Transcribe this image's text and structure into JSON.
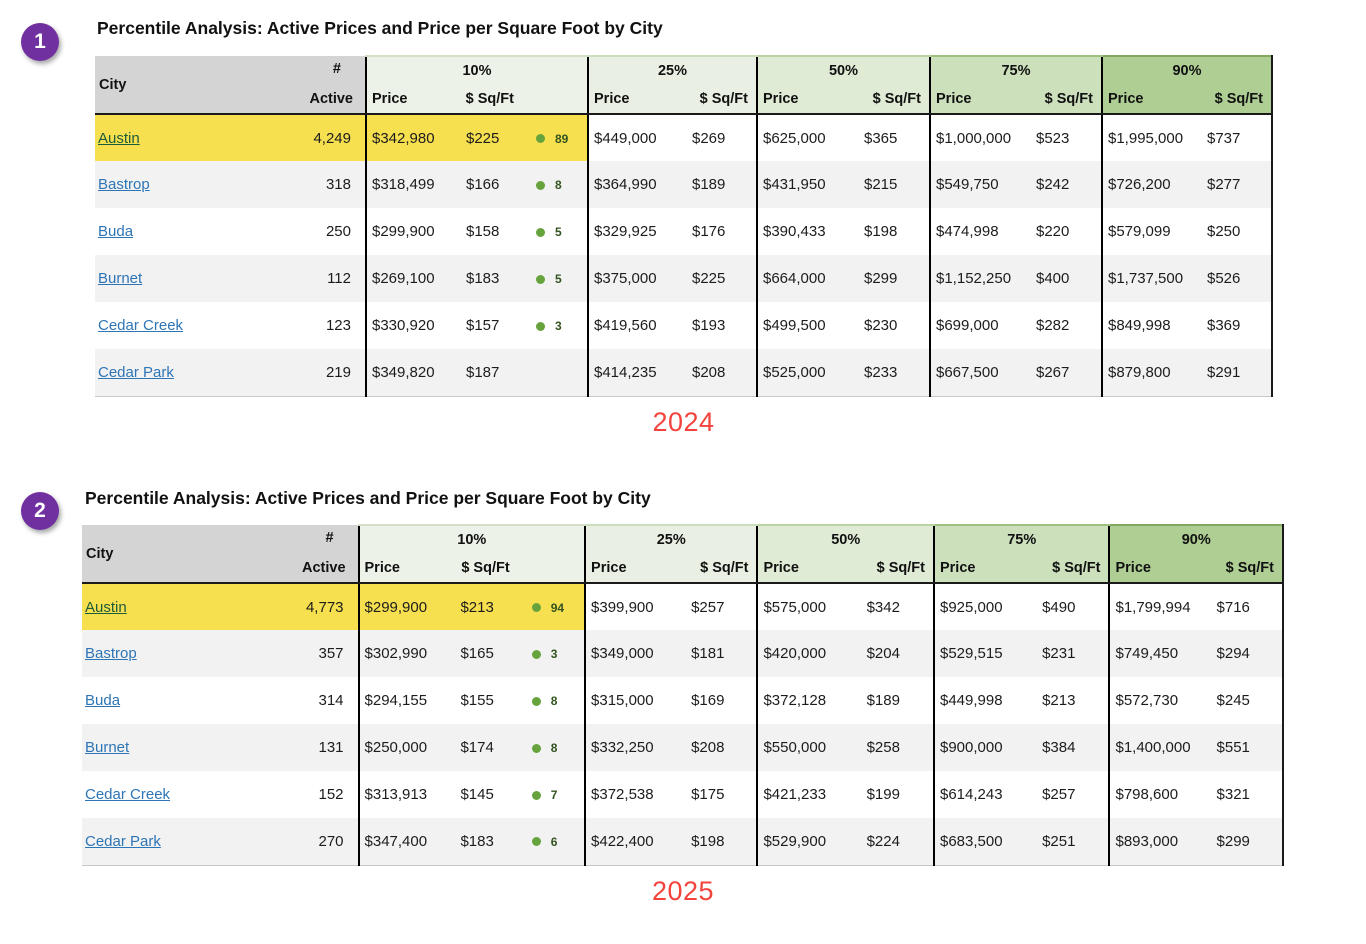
{
  "columns": {
    "city": "City",
    "active_top": "#",
    "active_bottom": "Active",
    "price": "Price",
    "sqft": "$ Sq/Ft",
    "percentiles": [
      "10%",
      "25%",
      "50%",
      "75%",
      "90%"
    ]
  },
  "sections": [
    {
      "badge": "1",
      "title": "Percentile Analysis: Active Prices and Price per Square Foot by City",
      "caption": "2024",
      "rows": [
        {
          "city": "Austin",
          "active": "4,249",
          "dot": "89",
          "highlight": true,
          "pct": [
            [
              "$342,980",
              "$225"
            ],
            [
              "$449,000",
              "$269"
            ],
            [
              "$625,000",
              "$365"
            ],
            [
              "$1,000,000",
              "$523"
            ],
            [
              "$1,995,000",
              "$737"
            ]
          ]
        },
        {
          "city": "Bastrop",
          "active": "318",
          "dot": "8",
          "highlight": false,
          "pct": [
            [
              "$318,499",
              "$166"
            ],
            [
              "$364,990",
              "$189"
            ],
            [
              "$431,950",
              "$215"
            ],
            [
              "$549,750",
              "$242"
            ],
            [
              "$726,200",
              "$277"
            ]
          ]
        },
        {
          "city": "Buda",
          "active": "250",
          "dot": "5",
          "highlight": false,
          "pct": [
            [
              "$299,900",
              "$158"
            ],
            [
              "$329,925",
              "$176"
            ],
            [
              "$390,433",
              "$198"
            ],
            [
              "$474,998",
              "$220"
            ],
            [
              "$579,099",
              "$250"
            ]
          ]
        },
        {
          "city": "Burnet",
          "active": "112",
          "dot": "5",
          "highlight": false,
          "pct": [
            [
              "$269,100",
              "$183"
            ],
            [
              "$375,000",
              "$225"
            ],
            [
              "$664,000",
              "$299"
            ],
            [
              "$1,152,250",
              "$400"
            ],
            [
              "$1,737,500",
              "$526"
            ]
          ]
        },
        {
          "city": "Cedar Creek",
          "active": "123",
          "dot": "3",
          "highlight": false,
          "pct": [
            [
              "$330,920",
              "$157"
            ],
            [
              "$419,560",
              "$193"
            ],
            [
              "$499,500",
              "$230"
            ],
            [
              "$699,000",
              "$282"
            ],
            [
              "$849,998",
              "$369"
            ]
          ]
        },
        {
          "city": "Cedar Park",
          "active": "219",
          "dot": null,
          "highlight": false,
          "pct": [
            [
              "$349,820",
              "$187"
            ],
            [
              "$414,235",
              "$208"
            ],
            [
              "$525,000",
              "$233"
            ],
            [
              "$667,500",
              "$267"
            ],
            [
              "$879,800",
              "$291"
            ]
          ]
        }
      ]
    },
    {
      "badge": "2",
      "title": "Percentile Analysis: Active Prices and Price per Square Foot by City",
      "caption": "2025",
      "rows": [
        {
          "city": "Austin",
          "active": "4,773",
          "dot": "94",
          "highlight": true,
          "pct": [
            [
              "$299,900",
              "$213"
            ],
            [
              "$399,900",
              "$257"
            ],
            [
              "$575,000",
              "$342"
            ],
            [
              "$925,000",
              "$490"
            ],
            [
              "$1,799,994",
              "$716"
            ]
          ]
        },
        {
          "city": "Bastrop",
          "active": "357",
          "dot": "3",
          "highlight": false,
          "pct": [
            [
              "$302,990",
              "$165"
            ],
            [
              "$349,000",
              "$181"
            ],
            [
              "$420,000",
              "$204"
            ],
            [
              "$529,515",
              "$231"
            ],
            [
              "$749,450",
              "$294"
            ]
          ]
        },
        {
          "city": "Buda",
          "active": "314",
          "dot": "8",
          "highlight": false,
          "pct": [
            [
              "$294,155",
              "$155"
            ],
            [
              "$315,000",
              "$169"
            ],
            [
              "$372,128",
              "$189"
            ],
            [
              "$449,998",
              "$213"
            ],
            [
              "$572,730",
              "$245"
            ]
          ]
        },
        {
          "city": "Burnet",
          "active": "131",
          "dot": "8",
          "highlight": false,
          "pct": [
            [
              "$250,000",
              "$174"
            ],
            [
              "$332,250",
              "$208"
            ],
            [
              "$550,000",
              "$258"
            ],
            [
              "$900,000",
              "$384"
            ],
            [
              "$1,400,000",
              "$551"
            ]
          ]
        },
        {
          "city": "Cedar Creek",
          "active": "152",
          "dot": "7",
          "highlight": false,
          "pct": [
            [
              "$313,913",
              "$145"
            ],
            [
              "$372,538",
              "$175"
            ],
            [
              "$421,233",
              "$199"
            ],
            [
              "$614,243",
              "$257"
            ],
            [
              "$798,600",
              "$321"
            ]
          ]
        },
        {
          "city": "Cedar Park",
          "active": "270",
          "dot": "6",
          "highlight": false,
          "pct": [
            [
              "$347,400",
              "$183"
            ],
            [
              "$422,400",
              "$198"
            ],
            [
              "$529,900",
              "$224"
            ],
            [
              "$683,500",
              "$251"
            ],
            [
              "$893,000",
              "$299"
            ]
          ]
        }
      ]
    }
  ],
  "colors": {
    "yellow_highlight": "#F7E04F",
    "header_gray": "#D4D4D4",
    "stripe_gray": "#F2F2F2",
    "percentile_greens": [
      "#EDF2E8",
      "#E9F0E3",
      "#DFEBD4",
      "#CCE0BC",
      "#AECE93"
    ],
    "dot_green": "#67A33C",
    "dot_text_green": "#33531F",
    "link_blue": "#2E75B6",
    "highlight_link_green": "#1E5B38",
    "year_red": "#F4433C",
    "annotation_purple": "#7030A0"
  }
}
